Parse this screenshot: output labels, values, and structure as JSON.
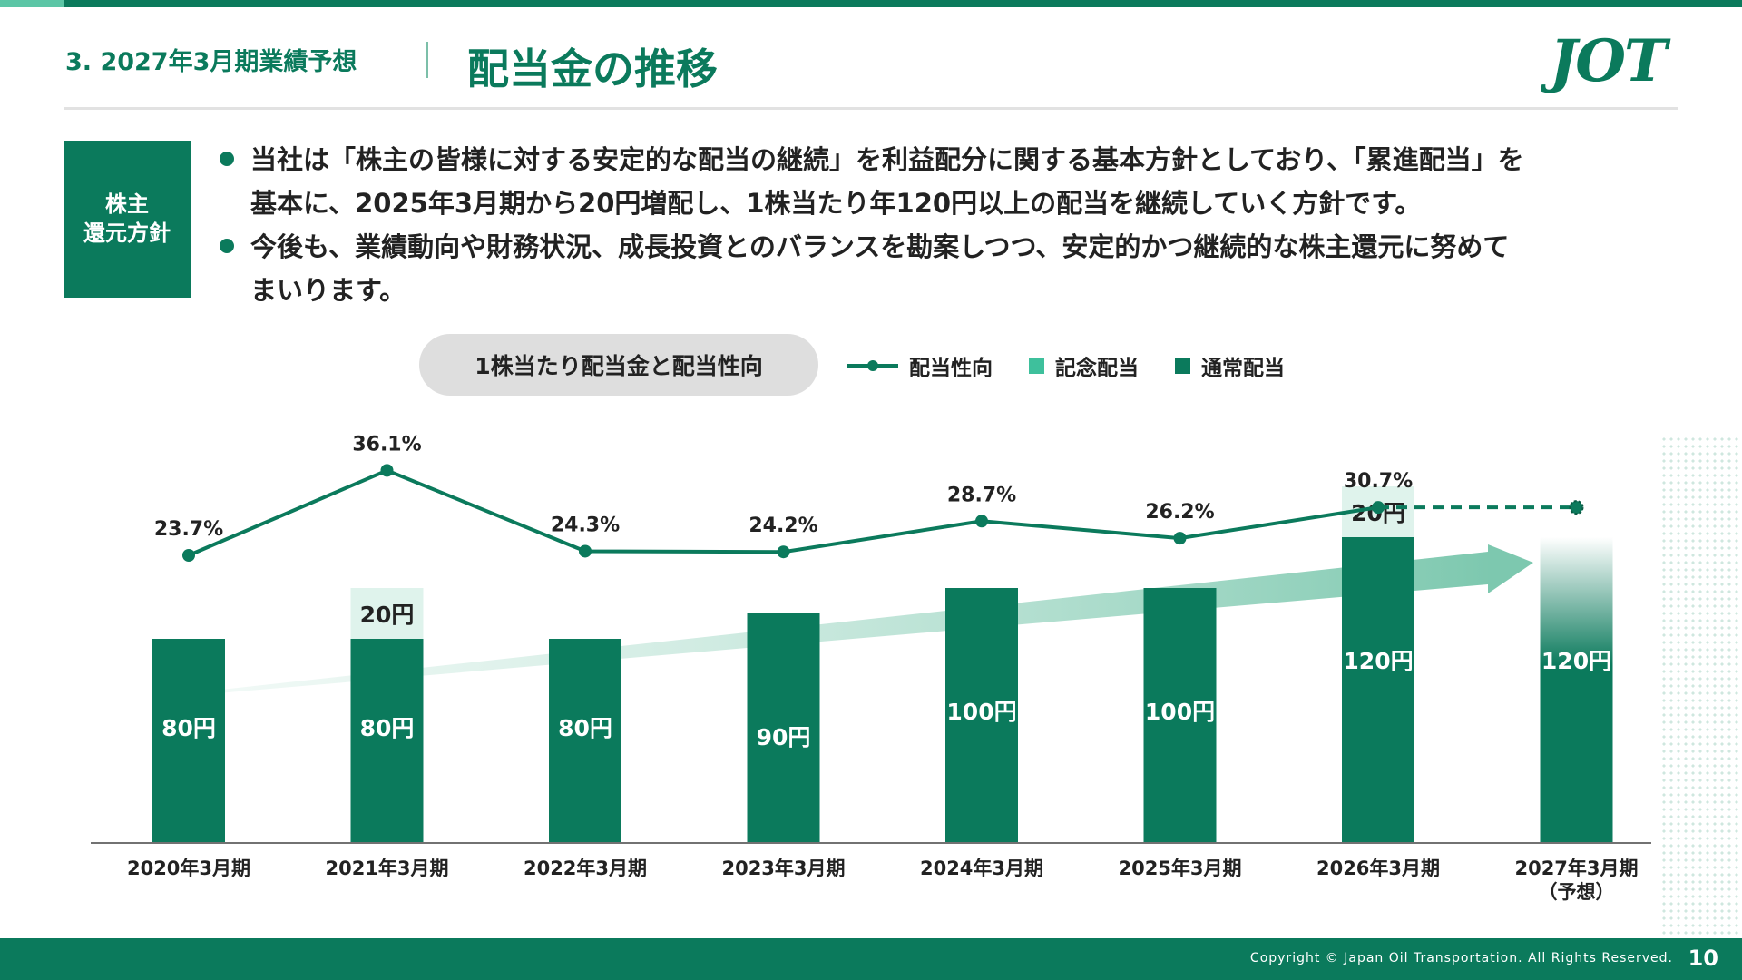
{
  "header": {
    "section": "3. 2027年3月期業績予想",
    "title": "配当金の推移",
    "logo": "JOT"
  },
  "policy": {
    "tag_line1": "株主",
    "tag_line2": "還元方針",
    "bullets": [
      {
        "line1": "当社は「株主の皆様に対する安定的な配当の継続」を利益配分に関する基本方針としており、「累進配当」を",
        "line2": "基本に、2025年3月期から20円増配し、1株当たり年120円以上の配当を継続していく方針です。"
      },
      {
        "line1": "今後も、業績動向や財務状況、成長投資とのバランスを勘案しつつ、安定的かつ継続的な株主還元に努めて",
        "line2": "まいります。"
      }
    ]
  },
  "colors": {
    "brand": "#0b7a5c",
    "memorial": "#3ec09c",
    "memorial_block": "#dff3ec",
    "forecast_top": "#ffffff"
  },
  "chart_data": {
    "type": "bar",
    "title": "1株当たり配当金と配当性向",
    "legend": [
      "配当性向",
      "記念配当",
      "通常配当"
    ],
    "legend_position": "top",
    "categories": [
      "2020年3月期",
      "2021年3月期",
      "2022年3月期",
      "2023年3月期",
      "2024年3月期",
      "2025年3月期",
      "2026年3月期",
      "2027年3月期"
    ],
    "category_notes": [
      "",
      "",
      "",
      "",
      "",
      "",
      "",
      "（予想）"
    ],
    "series": [
      {
        "name": "通常配当",
        "kind": "bar",
        "values": [
          80,
          80,
          80,
          90,
          100,
          100,
          120,
          120
        ],
        "labels": [
          "80円",
          "80円",
          "80円",
          "90円",
          "100円",
          "100円",
          "120円",
          "120円"
        ]
      },
      {
        "name": "記念配当",
        "kind": "bar-stacked",
        "values": [
          0,
          20,
          0,
          0,
          0,
          0,
          20,
          0
        ],
        "labels": [
          "",
          "20円",
          "",
          "",
          "",
          "",
          "20円",
          ""
        ]
      },
      {
        "name": "配当性向",
        "kind": "line",
        "values": [
          23.7,
          36.1,
          24.3,
          24.2,
          28.7,
          26.2,
          30.7,
          30.7
        ],
        "labels": [
          "23.7%",
          "36.1%",
          "24.3%",
          "24.2%",
          "28.7%",
          "26.2%",
          "30.7%",
          ""
        ],
        "forecast_from_index": 6
      }
    ],
    "bar_ylim": [
      0,
      150
    ],
    "line_ylim": [
      15,
      40
    ],
    "grid": false
  },
  "footer": {
    "copyright": "Copyright © Japan Oil Transportation. All Rights Reserved.",
    "page": "10"
  }
}
